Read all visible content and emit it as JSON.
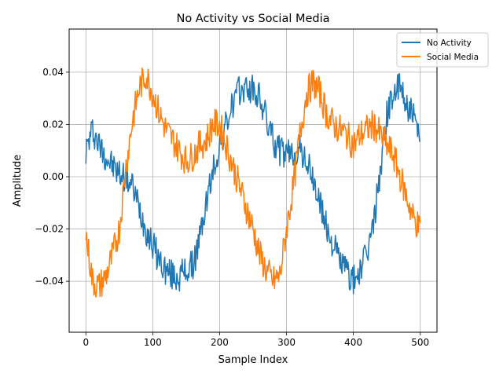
{
  "chart_data": {
    "type": "line",
    "title": "No Activity vs Social Media",
    "xlabel": "Sample Index",
    "ylabel": "Amplitude",
    "xlim": [
      -25,
      525
    ],
    "ylim": [
      -0.0595,
      0.0565
    ],
    "xticks": [
      0,
      100,
      200,
      300,
      400,
      500
    ],
    "yticks": [
      -0.04,
      -0.02,
      0.0,
      0.02,
      0.04
    ],
    "ytick_labels": [
      "−0.04",
      "−0.02",
      "0.00",
      "0.02",
      "0.04"
    ],
    "grid": true,
    "legend_position": "top-right",
    "series": [
      {
        "name": "No Activity",
        "color": "#1f77b4",
        "x_step": 10,
        "values": [
          0.01,
          0.018,
          0.012,
          0.008,
          0.004,
          0.001,
          0.0,
          -0.004,
          -0.012,
          -0.02,
          -0.026,
          -0.032,
          -0.036,
          -0.038,
          -0.038,
          -0.036,
          -0.034,
          -0.024,
          -0.01,
          0.002,
          0.012,
          0.02,
          0.028,
          0.033,
          0.034,
          0.033,
          0.03,
          0.022,
          0.014,
          0.01,
          0.008,
          0.009,
          0.01,
          0.006,
          -0.002,
          -0.01,
          -0.02,
          -0.026,
          -0.032,
          -0.036,
          -0.04,
          -0.036,
          -0.03,
          -0.018,
          0.002,
          0.024,
          0.032,
          0.034,
          0.028,
          0.022,
          0.012
        ]
      },
      {
        "name": "Social Media",
        "color": "#ff7f0e",
        "x_step": 10,
        "values": [
          -0.022,
          -0.04,
          -0.042,
          -0.038,
          -0.03,
          -0.02,
          0.004,
          0.022,
          0.034,
          0.039,
          0.032,
          0.024,
          0.018,
          0.014,
          0.01,
          0.006,
          0.008,
          0.012,
          0.014,
          0.02,
          0.02,
          0.012,
          0.004,
          -0.004,
          -0.012,
          -0.02,
          -0.03,
          -0.036,
          -0.04,
          -0.038,
          -0.02,
          -0.004,
          0.016,
          0.032,
          0.036,
          0.032,
          0.024,
          0.02,
          0.018,
          0.016,
          0.012,
          0.016,
          0.018,
          0.02,
          0.016,
          0.012,
          0.008,
          0.0,
          -0.008,
          -0.016,
          -0.02
        ]
      }
    ]
  }
}
